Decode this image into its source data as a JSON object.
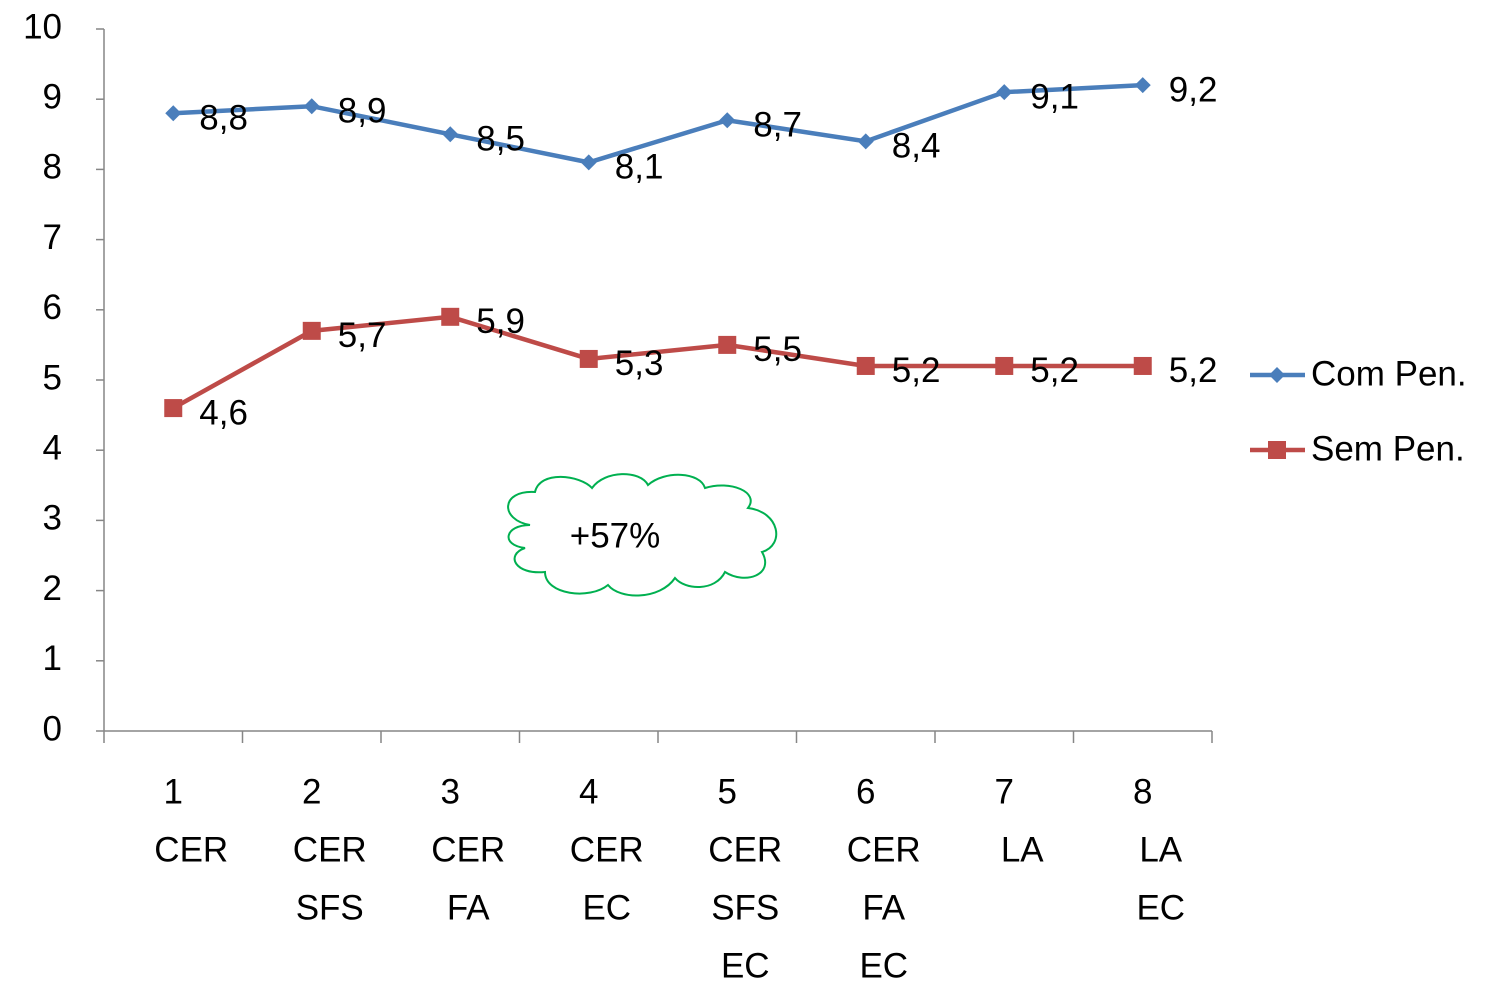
{
  "chart_data": {
    "type": "line",
    "categories": [
      [
        "1",
        "CER"
      ],
      [
        "2",
        "CER",
        "SFS"
      ],
      [
        "3",
        "CER",
        "FA"
      ],
      [
        "4",
        "CER",
        "EC"
      ],
      [
        "5",
        "CER",
        "SFS",
        "EC"
      ],
      [
        "6",
        "CER",
        "FA",
        "EC"
      ],
      [
        "7",
        "LA"
      ],
      [
        "8",
        "LA",
        "EC"
      ]
    ],
    "series": [
      {
        "name": "Com Pen.",
        "color": "#4a7ebb",
        "marker": "diamond",
        "values": [
          8.8,
          8.9,
          8.5,
          8.1,
          8.7,
          8.4,
          9.1,
          9.2
        ],
        "value_labels": [
          "8,8",
          "8,9",
          "8,5",
          "8,1",
          "8,7",
          "8,4",
          "9,1",
          "9,2"
        ]
      },
      {
        "name": "Sem Pen.",
        "color": "#be4b48",
        "marker": "square",
        "values": [
          4.6,
          5.7,
          5.9,
          5.3,
          5.5,
          5.2,
          5.2,
          5.2
        ],
        "value_labels": [
          "4,6",
          "5,7",
          "5,9",
          "5,3",
          "5,5",
          "5,2",
          "5,2",
          "5,2"
        ]
      }
    ],
    "ylim": [
      0,
      10
    ],
    "yticks": [
      0,
      1,
      2,
      3,
      4,
      5,
      6,
      7,
      8,
      9,
      10
    ],
    "legend": "right",
    "annotation": "+57%"
  }
}
